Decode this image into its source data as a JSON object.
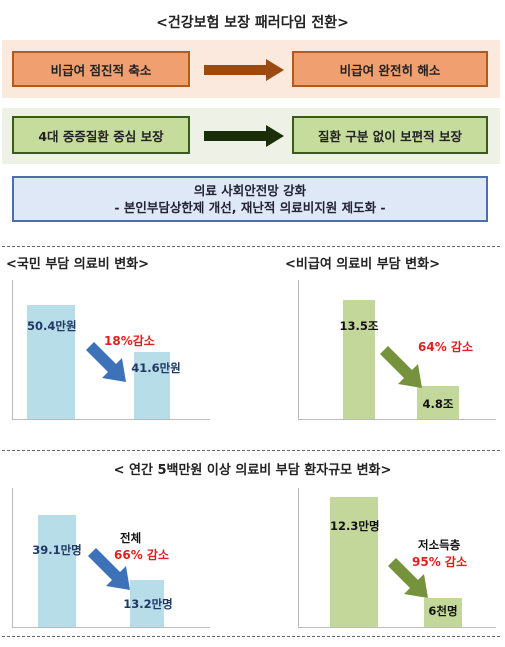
{
  "header": {
    "title": "<건강보험 보장 패러다임 전환>"
  },
  "paradigm": {
    "row1": {
      "from": "비급여 점진적 축소",
      "to": "비급여 완전히 해소",
      "arrow_color": "#9c4a10"
    },
    "row2": {
      "from": "4대 중증질환 중심 보장",
      "to": "질환 구분 없이 보편적 보장",
      "arrow_color": "#1a2e0a"
    },
    "summary": {
      "line1": "의료 사회안전망 강화",
      "line2": "- 본인부담상한제 개선, 재난적 의료비지원 제도화 -"
    }
  },
  "charts": {
    "national_burden": {
      "title": "<국민 부담 의료비 변화>",
      "before": "50.4만원",
      "after": "41.6만원",
      "change": "18%감소"
    },
    "non_covered": {
      "title": "<비급여 의료비 부담 변화>",
      "before": "13.5조",
      "after": "4.8조",
      "change": "64% 감소"
    },
    "section_title": "< 연간 5백만원 이상 의료비 부담 환자규모 변화>",
    "patients_all": {
      "group": "전체",
      "before": "39.1만명",
      "after": "13.2만명",
      "change": "66% 감소"
    },
    "patients_low": {
      "group": "저소득층",
      "before": "12.3만명",
      "after": "6천명",
      "change": "95% 감소"
    }
  },
  "chart_data": [
    {
      "type": "bar",
      "categories": [
        "",
        ""
      ],
      "values": [
        50.4,
        41.6
      ],
      "title": "<국민 부담 의료비 변화>",
      "ylabel": "",
      "xlabel": ""
    },
    {
      "type": "bar",
      "categories": [
        "",
        ""
      ],
      "values": [
        13.5,
        4.8
      ],
      "title": "<비급여 의료비 부담 변화>",
      "ylabel": "",
      "xlabel": ""
    },
    {
      "type": "bar",
      "categories": [
        "",
        ""
      ],
      "values": [
        39.1,
        13.2
      ],
      "title": "< 연간 5백만원 이상 의료비 부담 환자규모 변화>",
      "ylabel": "",
      "xlabel": ""
    },
    {
      "type": "bar",
      "categories": [
        "",
        ""
      ],
      "values": [
        12.3,
        0.6
      ],
      "title": "",
      "ylabel": "",
      "xlabel": ""
    }
  ],
  "colors": {
    "blue_bar": "#b6dde8",
    "green_bar": "#c4d79b",
    "blue_arrow": "#3d72b8",
    "green_arrow": "#76923c",
    "highlight": "#e02020"
  }
}
